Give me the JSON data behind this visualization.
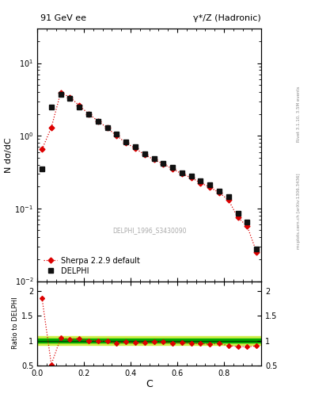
{
  "title_left": "91 GeV ee",
  "title_right": "γ*/Z (Hadronic)",
  "xlabel": "C",
  "ylabel_main": "N dσ/dC",
  "ylabel_ratio": "Ratio to DELPHI",
  "right_label_top": "Rivet 3.1.10, 3.5M events",
  "right_label_bot": "mcplots.cern.ch [arXiv:1306.3436]",
  "watermark": "DELPHI_1996_S3430090",
  "data_x": [
    0.02,
    0.06,
    0.1,
    0.14,
    0.18,
    0.22,
    0.26,
    0.3,
    0.34,
    0.38,
    0.42,
    0.46,
    0.5,
    0.54,
    0.58,
    0.62,
    0.66,
    0.7,
    0.74,
    0.78,
    0.82,
    0.86,
    0.9,
    0.94
  ],
  "data_y": [
    0.35,
    2.5,
    3.7,
    3.3,
    2.5,
    2.0,
    1.6,
    1.3,
    1.05,
    0.82,
    0.7,
    0.57,
    0.48,
    0.42,
    0.37,
    0.31,
    0.28,
    0.24,
    0.21,
    0.175,
    0.145,
    0.085,
    0.065,
    0.028
  ],
  "sherpa_x": [
    0.02,
    0.06,
    0.1,
    0.14,
    0.18,
    0.22,
    0.26,
    0.3,
    0.34,
    0.38,
    0.42,
    0.46,
    0.5,
    0.54,
    0.58,
    0.62,
    0.66,
    0.7,
    0.74,
    0.78,
    0.82,
    0.86,
    0.9,
    0.94
  ],
  "sherpa_y": [
    0.65,
    1.3,
    3.9,
    3.4,
    2.6,
    2.0,
    1.6,
    1.28,
    1.0,
    0.8,
    0.67,
    0.55,
    0.47,
    0.41,
    0.35,
    0.3,
    0.265,
    0.225,
    0.195,
    0.165,
    0.13,
    0.075,
    0.057,
    0.025
  ],
  "ratio_y": [
    1.86,
    0.52,
    1.05,
    1.03,
    1.04,
    1.0,
    1.0,
    0.985,
    0.952,
    0.976,
    0.957,
    0.965,
    0.979,
    0.976,
    0.946,
    0.968,
    0.946,
    0.938,
    0.929,
    0.943,
    0.897,
    0.882,
    0.877,
    0.893
  ],
  "ratio_band_inner_color": "#00aa00",
  "ratio_band_outer_color": "#ccee44",
  "ratio_band_inner_half": 0.04,
  "ratio_band_outer_half": 0.09,
  "data_color": "#111111",
  "sherpa_color": "#dd0000",
  "ylim_main": [
    0.01,
    30
  ],
  "ylim_ratio": [
    0.5,
    2.2
  ],
  "xlim": [
    0.0,
    0.96
  ]
}
